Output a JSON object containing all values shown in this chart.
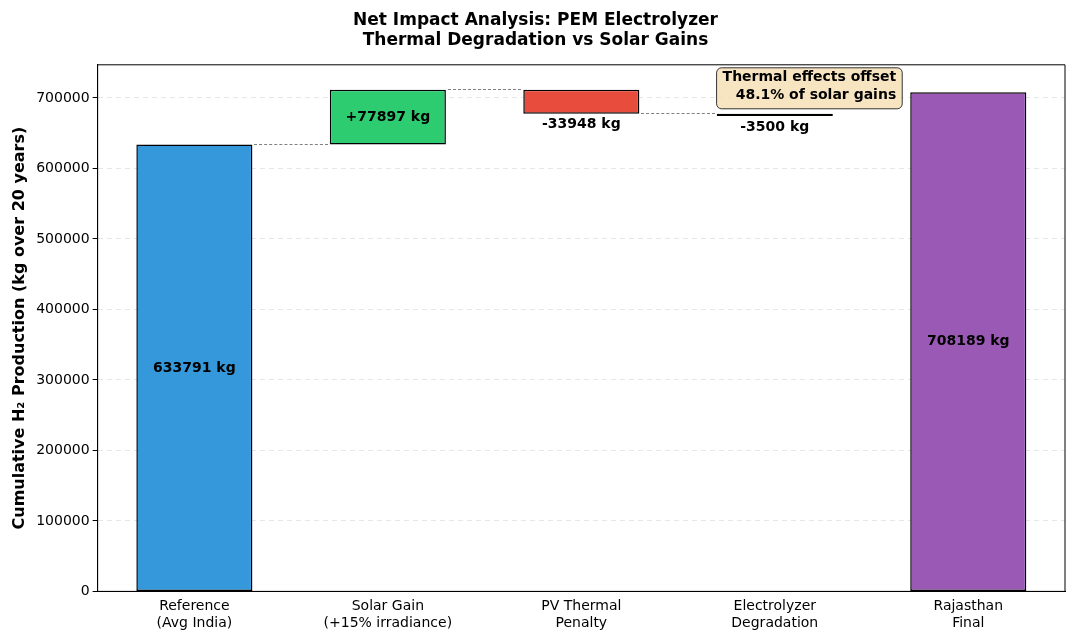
{
  "chart_data": {
    "type": "bar",
    "title": "Net Impact Analysis: PEM Electrolyzer\nThermal Degradation vs Solar Gains",
    "ylabel": "Cumulative H₂ Production (kg over 20 years)",
    "categories": [
      "Reference\n(Avg India)",
      "Solar Gain\n(+15% irradiance)",
      "PV Thermal\nPenalty",
      "Electrolyzer\nDegradation",
      "Rajasthan\nFinal"
    ],
    "values": [
      633791,
      77897,
      -33948,
      -3500,
      708189
    ],
    "base": [
      null,
      633791,
      711688,
      677740,
      null
    ],
    "colors": [
      "#3498db",
      "#2ecc71",
      "#e74c3c",
      "#000000",
      "#9b59b6"
    ],
    "value_labels": [
      "633791 kg",
      "+77897 kg",
      "-33948 kg",
      "-3500 kg",
      "708189 kg"
    ],
    "ylim": [
      0,
      747000
    ],
    "yticks": [
      0,
      100000,
      200000,
      300000,
      400000,
      500000,
      600000,
      700000
    ],
    "grid": "y",
    "legend": false,
    "annotations": [
      "Thermal effects offset\n48.1% of solar gains"
    ]
  }
}
